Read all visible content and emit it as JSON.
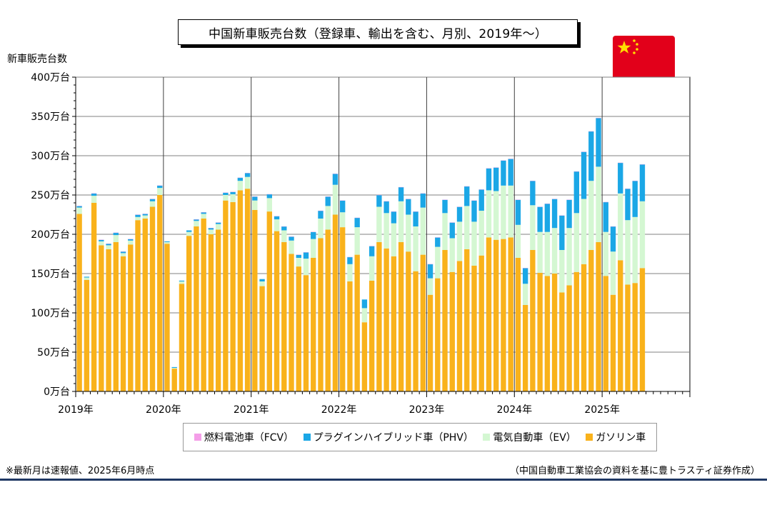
{
  "title": "中国新車販売台数（登録車、輸出を含む、月別、2019年～）",
  "ylabel": "新車販売台数",
  "legend": [
    {
      "key": "fcv",
      "label": "燃料電池車（FCV）",
      "color": "#f49ee8"
    },
    {
      "key": "phv",
      "label": "プラグインハイブリッド車（PHV）",
      "color": "#1ba7e6"
    },
    {
      "key": "ev",
      "label": "電気自動車（EV）",
      "color": "#d4f7d2"
    },
    {
      "key": "gas",
      "label": "ガソリン車",
      "color": "#f9b21b"
    }
  ],
  "footnote_left": "※最新月は速報値、2025年6月時点",
  "footnote_right": "（中国自動車工業協会の資料を基に豊トラスティ証券作成）",
  "flag_icon": "china-flag-icon",
  "chart_data": {
    "type": "bar",
    "stacked": true,
    "unit": "万台",
    "ylim": [
      0,
      400
    ],
    "yticks": [
      0,
      50,
      100,
      150,
      200,
      250,
      300,
      350,
      400
    ],
    "ytick_labels": [
      "0万台",
      "50万台",
      "100万台",
      "150万台",
      "200万台",
      "250万台",
      "300万台",
      "350万台",
      "400万台"
    ],
    "xtick_labels": [
      "2019年",
      "2020年",
      "2021年",
      "2022年",
      "2023年",
      "2024年",
      "2025年"
    ],
    "months_per_year": 12,
    "total_slots": 84,
    "grid": true,
    "legend_position": "bottom",
    "series": [
      {
        "name": "ガソリン車",
        "key": "gas",
        "color": "#f9b21b",
        "values": [
          226,
          142,
          240,
          186,
          181,
          190,
          172,
          187,
          218,
          220,
          235,
          250,
          188,
          29,
          137,
          198,
          210,
          220,
          200,
          206,
          243,
          241,
          256,
          258,
          231,
          134,
          229,
          204,
          190,
          175,
          159,
          148,
          170,
          195,
          206,
          225,
          209,
          140,
          174,
          88,
          141,
          190,
          182,
          172,
          190,
          178,
          153,
          174,
          123,
          144,
          180,
          152,
          166,
          181,
          160,
          173,
          196,
          193,
          194,
          196,
          170,
          110,
          180,
          151,
          147,
          150,
          126,
          135,
          152,
          162,
          180,
          190,
          147,
          123,
          167,
          136,
          138,
          157
        ]
      },
      {
        "name": "電気自動車（EV）",
        "key": "ev",
        "color": "#d4f7d2",
        "values": [
          8,
          3,
          9,
          5,
          5,
          9,
          4,
          5,
          4,
          4,
          7,
          9,
          2,
          1,
          3,
          5,
          7,
          6,
          6,
          7,
          7,
          10,
          12,
          15,
          12,
          6,
          17,
          15,
          15,
          17,
          11,
          21,
          24,
          25,
          30,
          38,
          19,
          22,
          35,
          18,
          31,
          45,
          45,
          42,
          52,
          47,
          57,
          60,
          21,
          40,
          47,
          43,
          50,
          55,
          56,
          57,
          60,
          62,
          68,
          66,
          42,
          27,
          57,
          52,
          56,
          58,
          54,
          73,
          75,
          83,
          88,
          96,
          56,
          55,
          85,
          82,
          84,
          85
        ]
      },
      {
        "name": "プラグインハイブリッド車（PHV）",
        "key": "phv",
        "color": "#1ba7e6",
        "values": [
          2,
          1,
          3,
          2,
          2,
          3,
          2,
          2,
          3,
          2,
          3,
          3,
          1,
          1,
          1,
          2,
          2,
          2,
          2,
          2,
          3,
          3,
          4,
          5,
          5,
          3,
          5,
          4,
          5,
          5,
          4,
          8,
          9,
          10,
          12,
          14,
          15,
          9,
          12,
          11,
          13,
          15,
          15,
          15,
          18,
          20,
          19,
          18,
          18,
          12,
          17,
          20,
          19,
          25,
          27,
          27,
          28,
          30,
          32,
          34,
          32,
          20,
          31,
          32,
          36,
          37,
          44,
          36,
          53,
          60,
          63,
          62,
          38,
          32,
          39,
          40,
          46,
          47
        ]
      },
      {
        "name": "燃料電池車（FCV）",
        "key": "fcv",
        "color": "#f49ee8",
        "values": [
          0.1,
          0,
          0.1,
          0.1,
          0.1,
          0.1,
          0.1,
          0.1,
          0.1,
          0.1,
          0.1,
          0.1,
          0,
          0,
          0,
          0,
          0.1,
          0.1,
          0.1,
          0.1,
          0.1,
          0.1,
          0.1,
          0.1,
          0.1,
          0,
          0.1,
          0.1,
          0.1,
          0.1,
          0.1,
          0.1,
          0.1,
          0.1,
          0.1,
          0.1,
          0.1,
          0.1,
          0.1,
          0,
          0.1,
          0.1,
          0.1,
          0.1,
          0.1,
          0.1,
          0.1,
          0.1,
          0.1,
          0.1,
          0.1,
          0.1,
          0.1,
          0.1,
          0.1,
          0.1,
          0.1,
          0.1,
          0.1,
          0.1,
          0.1,
          0.1,
          0.1,
          0.1,
          0.1,
          0.1,
          0.1,
          0.1,
          0.1,
          0.1,
          0.1,
          0.1,
          0.1,
          0.1,
          0.1,
          0.1,
          0.1,
          0.1
        ]
      }
    ]
  }
}
